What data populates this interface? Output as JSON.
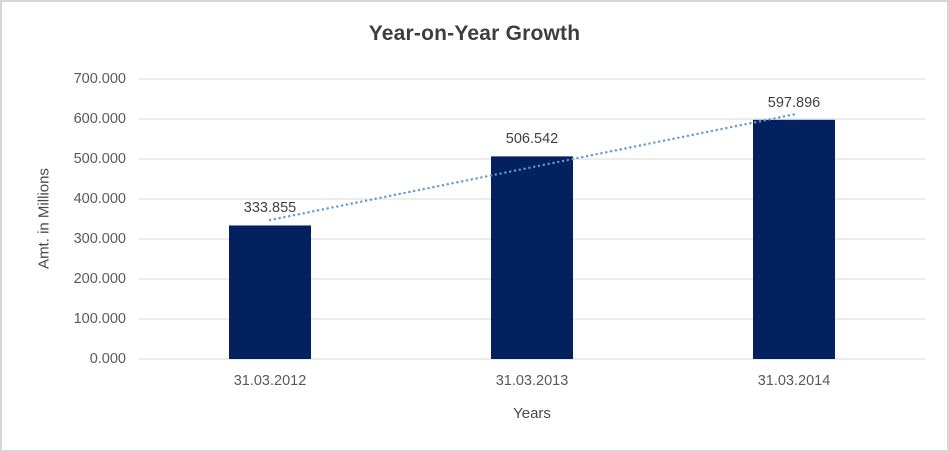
{
  "chart": {
    "title": "Year-on-Year Growth",
    "x_axis_title": "Years",
    "y_axis_title": "Amt. in Millions"
  },
  "chart_data": {
    "type": "bar",
    "title": "Year-on-Year Growth",
    "xlabel": "Years",
    "ylabel": "Amt. in Millions",
    "categories": [
      "31.03.2012",
      "31.03.2013",
      "31.03.2014"
    ],
    "values": [
      333.855,
      506.542,
      597.896
    ],
    "data_labels": [
      "333.855",
      "506.542",
      "597.896"
    ],
    "y_ticks": [
      "0.000",
      "100.000",
      "200.000",
      "300.000",
      "400.000",
      "500.000",
      "600.000",
      "700.000"
    ],
    "ylim": [
      0,
      700
    ],
    "grid": true,
    "legend": "none",
    "trendline": {
      "type": "linear",
      "style": "dotted"
    },
    "colors": {
      "bar": "#03215e",
      "trendline": "#5b9bd5",
      "gridline": "#d9d9d9",
      "title_text": "#3e3e3e",
      "axis_text": "#595959",
      "data_label_text": "#404040",
      "border": "#d6d6d6",
      "background": "#ffffff"
    }
  }
}
